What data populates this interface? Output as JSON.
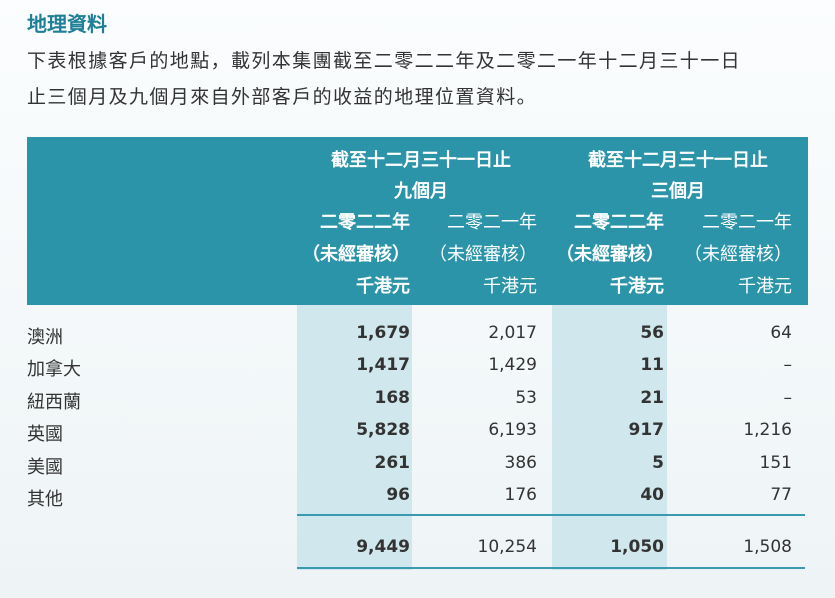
{
  "title": "地理資料",
  "intro": [
    "下表根據客戶的地點，載列本集團截至二零二二年及二零二一年十二月三十一日",
    "止三個月及九個月來自外部客戶的收益的地理位置資料。"
  ],
  "table": {
    "groups": [
      [
        "截至十二月三十一日止",
        "九個月"
      ],
      [
        "截至十二月三十一日止",
        "三個月"
      ]
    ],
    "columns": [
      [
        "二零二二年",
        "（未經審核）",
        "千港元"
      ],
      [
        "二零二一年",
        "（未經審核）",
        "千港元"
      ],
      [
        "二零二二年",
        "（未經審核）",
        "千港元"
      ],
      [
        "二零二一年",
        "（未經審核）",
        "千港元"
      ]
    ],
    "rows": [
      [
        "澳洲",
        "1,679",
        "2,017",
        "56",
        "64"
      ],
      [
        "加拿大",
        "1,417",
        "1,429",
        "11",
        "–"
      ],
      [
        "紐西蘭",
        "168",
        "53",
        "21",
        "–"
      ],
      [
        "英國",
        "5,828",
        "6,193",
        "917",
        "1,216"
      ],
      [
        "美國",
        "261",
        "386",
        "5",
        "151"
      ],
      [
        "其他",
        "96",
        "176",
        "40",
        "77"
      ]
    ],
    "total": [
      "9,449",
      "10,254",
      "1,050",
      "1,508"
    ]
  }
}
